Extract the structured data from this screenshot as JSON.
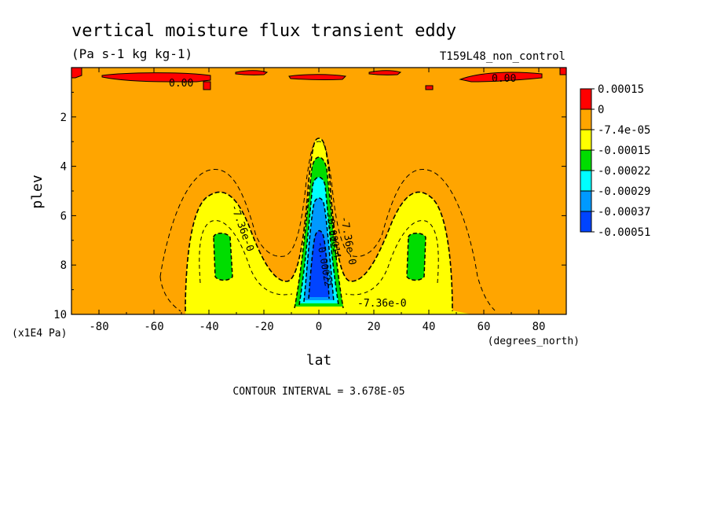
{
  "chart_data": {
    "type": "contour",
    "title": "vertical moisture flux transient eddy",
    "units": "(Pa s-1 kg kg-1)",
    "dataset": "T159L48_non_control",
    "xlabel": "lat",
    "x_units": "(degrees_north)",
    "ylabel": "plev",
    "y_units": "(x1E4 Pa)",
    "xlim": [
      -90,
      90
    ],
    "ylim": [
      0,
      10
    ],
    "y_inverted": true,
    "x_ticks": [
      -80,
      -60,
      -40,
      -20,
      0,
      20,
      40,
      60,
      80
    ],
    "x_tick_labels": [
      "-80",
      "-60",
      "-40",
      "-20",
      "0",
      "20",
      "40",
      "60",
      "80"
    ],
    "y_ticks": [
      2,
      4,
      6,
      8,
      10
    ],
    "y_tick_labels": [
      "2",
      "4",
      "6",
      "8",
      "10"
    ],
    "contour_interval_text": "CONTOUR INTERVAL = 3.678E-05",
    "contour_labels": [
      "0.00",
      "0.00",
      "-7.36e-0",
      "-7.36e-0",
      "-7.36e-0",
      "-0.00014",
      "-0.00022"
    ],
    "colorbar": {
      "levels": [
        "0.00015",
        "0",
        "-7.4e-05",
        "-0.00015",
        "-0.00022",
        "-0.00029",
        "-0.00037",
        "-0.00051"
      ],
      "colors": [
        "#ff0000",
        "#ffa500",
        "#ffff00",
        "#00dd00",
        "#00ffff",
        "#0099ff",
        "#0044ff"
      ]
    },
    "background_color": "#ffa500"
  }
}
